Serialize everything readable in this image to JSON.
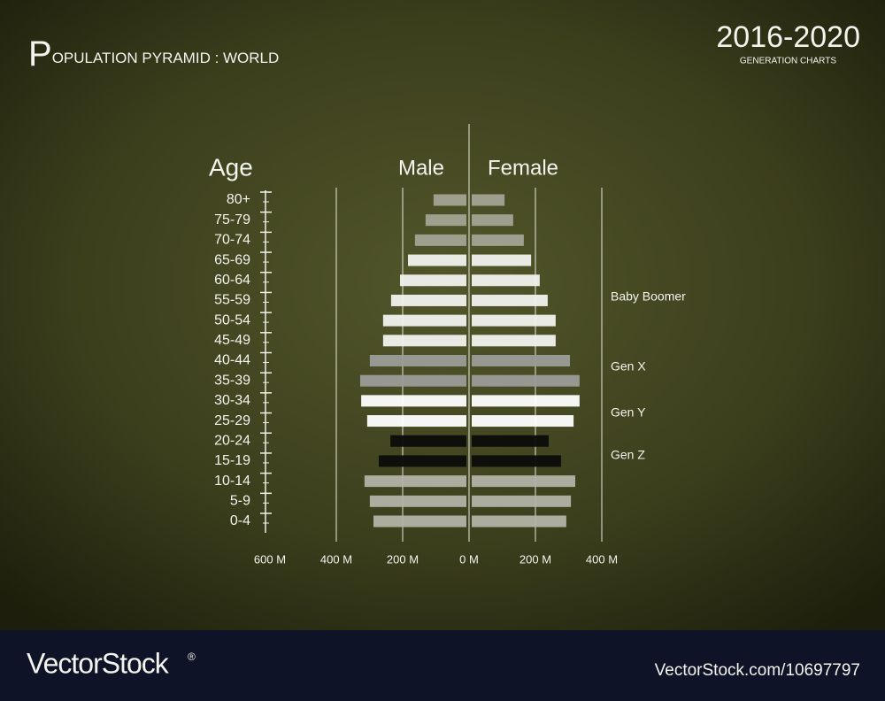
{
  "chart_data": {
    "type": "pyramid",
    "title": "POPULATION PYRAMID : WORLD",
    "subtitle": "2016-2020",
    "subtitle2": "GENERATION CHARTS",
    "y_label": "Age",
    "categories": [
      "80+",
      "75-79",
      "70-74",
      "65-69",
      "60-64",
      "55-59",
      "50-54",
      "45-49",
      "40-44",
      "35-39",
      "30-34",
      "25-29",
      "20-24",
      "15-19",
      "10-14",
      "5-9",
      "0-4"
    ],
    "colors": [
      "#a3a393",
      "#a3a393",
      "#a3a393",
      "#f2f2ee",
      "#f2f2ee",
      "#f2f2ee",
      "#f2f2ee",
      "#f2f2ee",
      "#9c9c98",
      "#9c9c98",
      "#ffffff",
      "#ffffff",
      "#0c0c0a",
      "#0c0c0a",
      "#b3b3a6",
      "#b3b3a6",
      "#b3b3a6"
    ],
    "series": [
      {
        "name": "Male",
        "side": "left",
        "values": [
          99,
          123,
          155,
          176,
          200,
          227,
          251,
          251,
          291,
          320,
          317,
          299,
          229,
          264,
          307,
          291,
          280
        ]
      },
      {
        "name": "Female",
        "side": "right",
        "values": [
          99,
          125,
          157,
          179,
          205,
          229,
          253,
          253,
          296,
          325,
          325,
          307,
          232,
          269,
          312,
          299,
          285
        ]
      }
    ],
    "xlim": [
      -600,
      400
    ],
    "xticks": [
      {
        "value": -600,
        "label": "600 M"
      },
      {
        "value": -400,
        "label": "400 M"
      },
      {
        "value": -200,
        "label": "200 M"
      },
      {
        "value": 0,
        "label": "0 M"
      },
      {
        "value": 200,
        "label": "200 M"
      },
      {
        "value": 400,
        "label": "400 M"
      }
    ],
    "grid": true,
    "annotations": [
      "Baby Boomer",
      "Gen X",
      "Gen Y",
      "Gen Z"
    ]
  },
  "footer": {
    "brand": "VectorStock",
    "mark": "®",
    "id": "VectorStock.com/10697797"
  }
}
